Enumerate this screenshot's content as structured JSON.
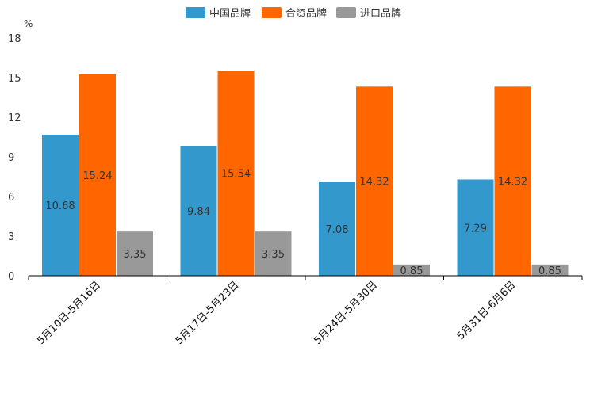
{
  "chart_data": {
    "type": "bar",
    "unit": "%",
    "ylim": [
      0,
      18
    ],
    "yticks": [
      "0",
      "3",
      "6",
      "9",
      "12",
      "15",
      "18"
    ],
    "categories": [
      "5月10日-5月16日",
      "5月17日-5月23日",
      "5月24日-5月30日",
      "5月31日-6月6日"
    ],
    "series": [
      {
        "name": "中国品牌",
        "color": "#3399cc",
        "values": [
          10.68,
          9.84,
          7.08,
          7.29
        ],
        "labels": [
          "10.68",
          "9.84",
          "7.08",
          "7.29"
        ]
      },
      {
        "name": "合资品牌",
        "color": "#ff6600",
        "values": [
          15.24,
          15.54,
          14.32,
          14.32
        ],
        "labels": [
          "15.24",
          "15.54",
          "14.32",
          "14.32"
        ]
      },
      {
        "name": "进口品牌",
        "color": "#999999",
        "values": [
          3.35,
          3.35,
          0.85,
          0.85
        ],
        "labels": [
          "3.35",
          "3.35",
          "0.85",
          "0.85"
        ]
      }
    ],
    "legend_position": "top-center",
    "grid": false
  }
}
